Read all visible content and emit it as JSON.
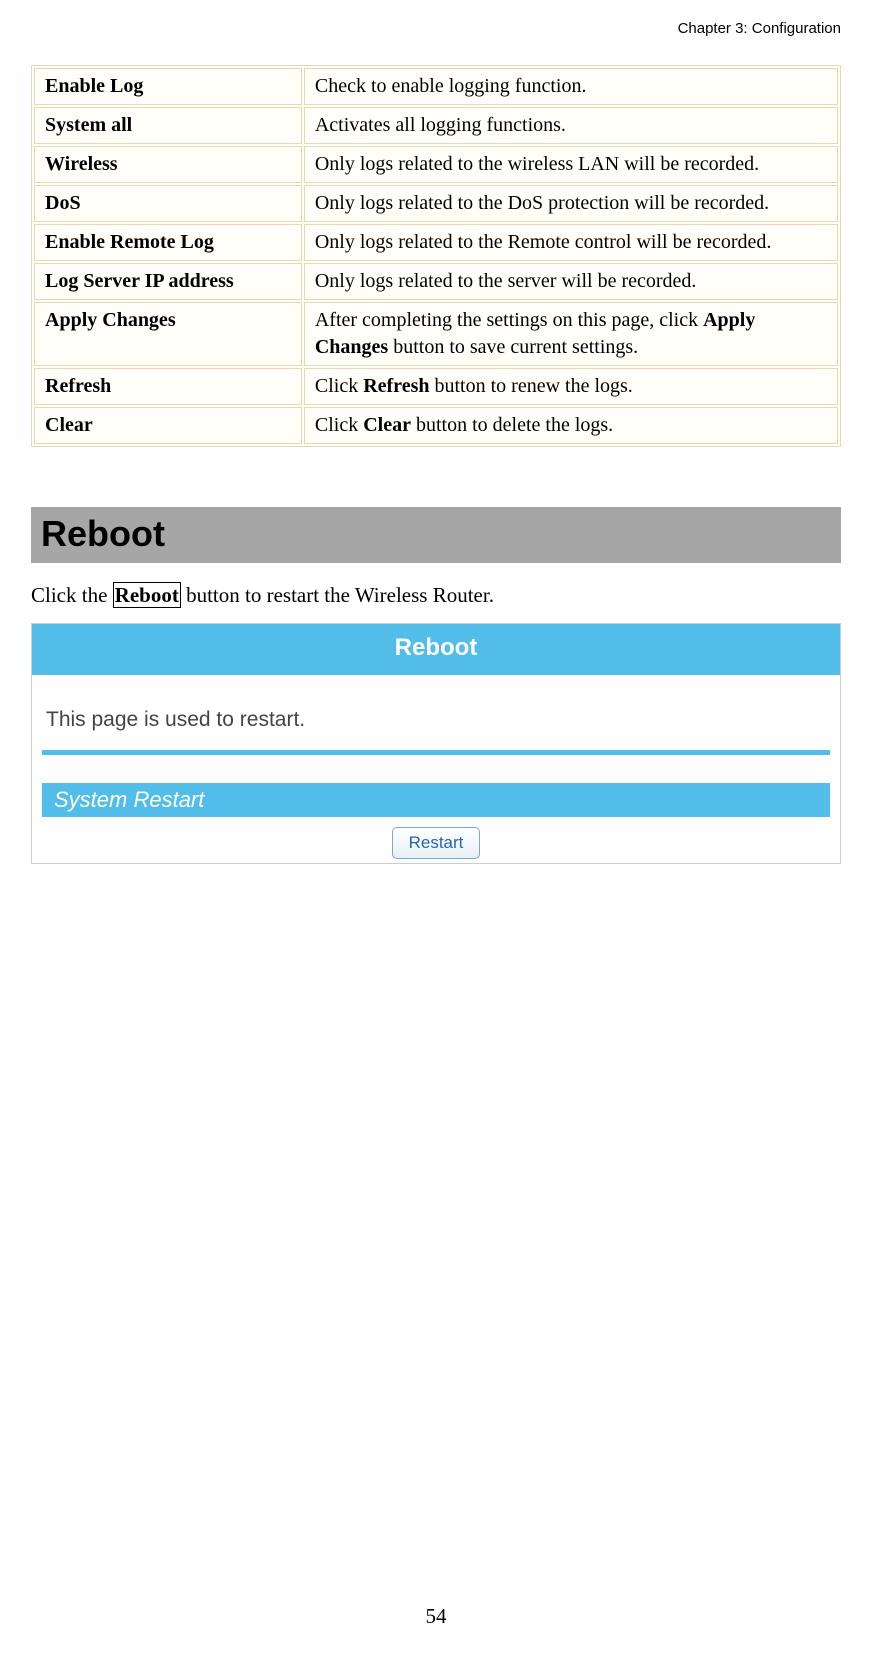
{
  "chapter_header": "Chapter 3: Configuration",
  "config_table": {
    "rows": [
      {
        "label": "Enable Log",
        "desc_parts": [
          {
            "t": "Check to enable logging function."
          }
        ]
      },
      {
        "label": "System all",
        "desc_parts": [
          {
            "t": "Activates all logging functions."
          }
        ]
      },
      {
        "label": "Wireless",
        "desc_parts": [
          {
            "t": "Only logs related to the wireless LAN will be recorded."
          }
        ]
      },
      {
        "label": "DoS",
        "desc_parts": [
          {
            "t": "Only logs related to the DoS protection will be recorded."
          }
        ]
      },
      {
        "label": "Enable Remote Log",
        "desc_parts": [
          {
            "t": "Only logs related to the Remote control will be recorded."
          }
        ]
      },
      {
        "label": "Log Server IP address",
        "desc_parts": [
          {
            "t": "Only logs related to the server will be recorded."
          }
        ]
      },
      {
        "label": "Apply Changes",
        "desc_parts": [
          {
            "t": "After completing the settings on this page, click "
          },
          {
            "t": "Apply Changes",
            "bold": true
          },
          {
            "t": " button to save current settings."
          }
        ]
      },
      {
        "label": "Refresh",
        "desc_parts": [
          {
            "t": "Click "
          },
          {
            "t": "Refresh",
            "bold": true
          },
          {
            "t": " button to renew the logs."
          }
        ]
      },
      {
        "label": "Clear",
        "desc_parts": [
          {
            "t": "Click "
          },
          {
            "t": "Clear",
            "bold": true
          },
          {
            "t": " button to delete the logs."
          }
        ]
      }
    ]
  },
  "section": {
    "heading": "Reboot",
    "instruction_prefix": "Click the ",
    "instruction_boxed": "Reboot",
    "instruction_suffix": " button to restart the Wireless Router."
  },
  "reboot_panel": {
    "title": "Reboot",
    "description": "This page is used to restart.",
    "section_label": "System Restart",
    "button_label": "Restart"
  },
  "page_number": "54",
  "colors": {
    "table_border": "#e8d8b8",
    "table_bg": "#fffef8",
    "heading_bg": "#a6a6a6",
    "panel_blue": "#52bde9",
    "button_text": "#2566a8",
    "button_border": "#7aa9d4"
  }
}
